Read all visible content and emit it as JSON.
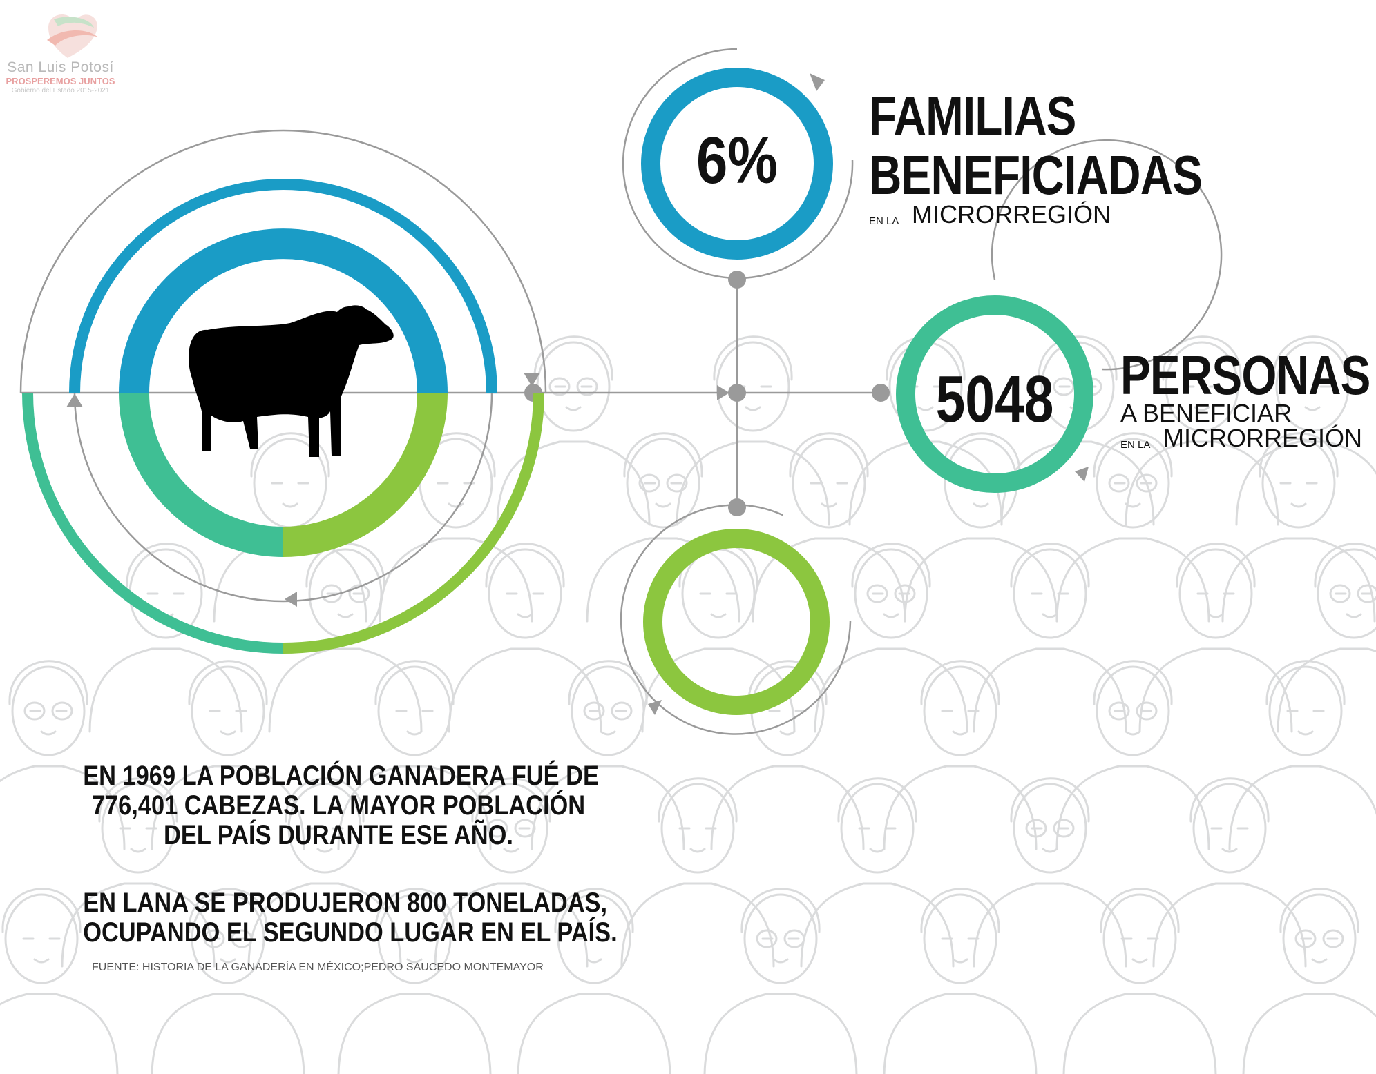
{
  "logo": {
    "name": "San Luis Potosí",
    "slogan": "PROSPEREMOS JUNTOS",
    "subtitle": "Gobierno del Estado 2015-2021"
  },
  "stat_families": {
    "value": "6%",
    "title_line1": "FAMILIAS",
    "title_line2": "BENEFICIADAS",
    "prefix": "EN LA",
    "region": "MICRORREGIÓN"
  },
  "stat_people": {
    "value": "5048",
    "title": "PERSONAS",
    "line2": "A BENEFICIAR",
    "prefix": "EN LA",
    "region": "MICRORREGIÓN"
  },
  "facts": {
    "p1": [
      "EN 1969 LA POBLACIÓN GANADERA FUÉ DE",
      "776,401 CABEZAS. LA MAYOR POBLACIÓN",
      "DEL PAÍS DURANTE ESE AÑO."
    ],
    "p2": [
      "EN LANA SE PRODUJERON 800 TONELADAS,",
      "OCUPANDO EL SEGUNDO LUGAR EN EL PAÍS."
    ],
    "source": "FUENTE: HISTORIA DE LA GANADERÍA EN MÉXICO;PEDRO SAUCEDO MONTEMAYOR"
  },
  "icons": {
    "sheep": "sheep-icon",
    "logo": "heart-ribbon-logo-icon",
    "background": "crowd-illustration"
  },
  "colors": {
    "blue": "#1a9cc6",
    "teal": "#3fbf94",
    "green": "#8cc63f",
    "connector": "#9a9a9a",
    "crowd": "#dedfe0"
  }
}
